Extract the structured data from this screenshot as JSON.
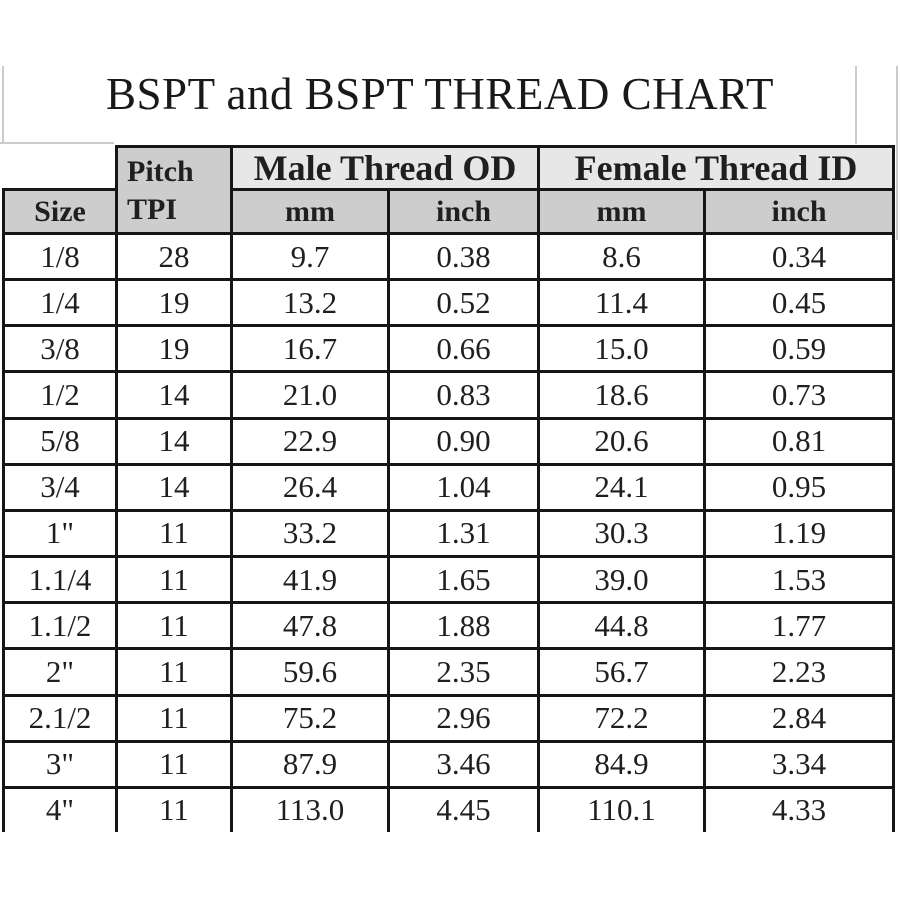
{
  "title": "BSPT and BSPT THREAD CHART",
  "table": {
    "headers": {
      "size": "Size",
      "pitch_line1": "Pitch",
      "pitch_line2": "TPI",
      "male_group": "Male Thread OD",
      "female_group": "Female Thread ID",
      "units": [
        "mm",
        "inch",
        "mm",
        "inch"
      ]
    },
    "rows": [
      [
        "1/8",
        "28",
        "9.7",
        "0.38",
        "8.6",
        "0.34"
      ],
      [
        "1/4",
        "19",
        "13.2",
        "0.52",
        "11.4",
        "0.45"
      ],
      [
        "3/8",
        "19",
        "16.7",
        "0.66",
        "15.0",
        "0.59"
      ],
      [
        "1/2",
        "14",
        "21.0",
        "0.83",
        "18.6",
        "0.73"
      ],
      [
        "5/8",
        "14",
        "22.9",
        "0.90",
        "20.6",
        "0.81"
      ],
      [
        "3/4",
        "14",
        "26.4",
        "1.04",
        "24.1",
        "0.95"
      ],
      [
        "1\"",
        "11",
        "33.2",
        "1.31",
        "30.3",
        "1.19"
      ],
      [
        "1.1/4",
        "11",
        "41.9",
        "1.65",
        "39.0",
        "1.53"
      ],
      [
        "1.1/2",
        "11",
        "47.8",
        "1.88",
        "44.8",
        "1.77"
      ],
      [
        "2\"",
        "11",
        "59.6",
        "2.35",
        "56.7",
        "2.23"
      ],
      [
        "2.1/2",
        "11",
        "75.2",
        "2.96",
        "72.2",
        "2.84"
      ],
      [
        "3\"",
        "11",
        "87.9",
        "3.46",
        "84.9",
        "3.34"
      ],
      [
        "4\"",
        "11",
        "113.0",
        "4.45",
        "110.1",
        "4.33"
      ]
    ]
  },
  "colors": {
    "header_light": "#e7e7e7",
    "header_medium": "#cdcdcd",
    "border_ink": "#161616",
    "text_ink": "#1f1f1f",
    "artifact_gray": "#cccccc"
  }
}
